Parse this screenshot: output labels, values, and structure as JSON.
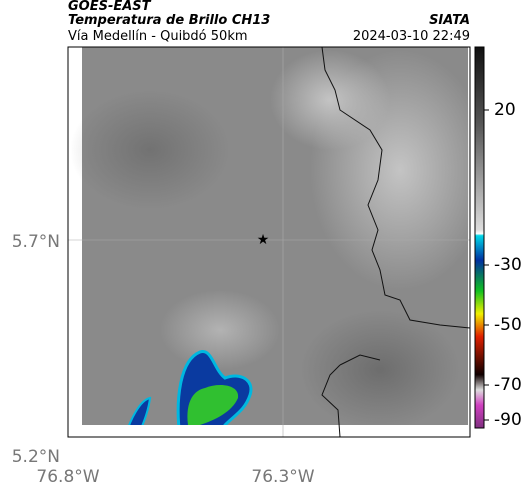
{
  "header": {
    "satellite": "GOES-EAST",
    "product": "Temperatura de Brillo CH13",
    "region": "Vía Medellín - Quibdó 50km",
    "source": "SIATA",
    "datetime": "2024-03-10 22:49"
  },
  "map": {
    "lat_labels": [
      "5.7°N",
      "5.2°N"
    ],
    "lon_labels": [
      "76.8°W",
      "76.3°W"
    ]
  },
  "colorbar": {
    "ticks": [
      20,
      -30,
      -50,
      -70,
      -90
    ]
  }
}
